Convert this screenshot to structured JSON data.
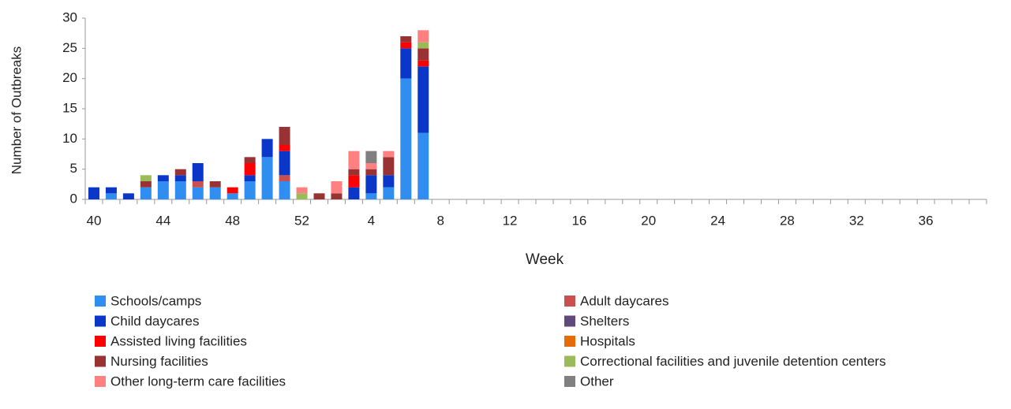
{
  "chart_data": {
    "type": "stacked-bar",
    "x_label": "Week",
    "y_label": "Number of Outbreaks",
    "categories": [
      "40",
      null,
      null,
      null,
      "44",
      null,
      null,
      null,
      "48",
      null,
      null,
      null,
      "52",
      null,
      null,
      null,
      "4",
      null,
      null,
      null,
      "8",
      null,
      null,
      null,
      "12",
      null,
      null,
      null,
      "16",
      null,
      null,
      null,
      "20",
      null,
      null,
      null,
      "24",
      null,
      null,
      null,
      "28",
      null,
      null,
      null,
      "32",
      null,
      null,
      null,
      "36",
      null,
      null,
      null
    ],
    "ylim": [
      0,
      30
    ],
    "yticks": [
      0,
      5,
      10,
      15,
      20,
      25,
      30
    ],
    "grid": false,
    "series": [
      {
        "name": "Schools/camps",
        "color": "#2f8ef0",
        "values": [
          0,
          1,
          0,
          2,
          3,
          3,
          2,
          2,
          1,
          3,
          7,
          3,
          0,
          0,
          0,
          0,
          1,
          2,
          20,
          11,
          0,
          0,
          0,
          0,
          0,
          0,
          0,
          0,
          0,
          0,
          0,
          0,
          0,
          0,
          0,
          0,
          0,
          0,
          0,
          0,
          0,
          0,
          0,
          0,
          0,
          0,
          0,
          0,
          0,
          0,
          0,
          0
        ]
      },
      {
        "name": "Adult daycares",
        "color": "#c9504f",
        "values": [
          0,
          0,
          0,
          0,
          0,
          0,
          1,
          0,
          0,
          0,
          0,
          1,
          0,
          0,
          0,
          0,
          0,
          0,
          0,
          0,
          0,
          0,
          0,
          0,
          0,
          0,
          0,
          0,
          0,
          0,
          0,
          0,
          0,
          0,
          0,
          0,
          0,
          0,
          0,
          0,
          0,
          0,
          0,
          0,
          0,
          0,
          0,
          0,
          0,
          0,
          0,
          0
        ]
      },
      {
        "name": "Child daycares",
        "color": "#0a37c8",
        "values": [
          2,
          1,
          1,
          0,
          1,
          1,
          3,
          0,
          0,
          1,
          3,
          4,
          0,
          0,
          0,
          2,
          3,
          2,
          5,
          11,
          0,
          0,
          0,
          0,
          0,
          0,
          0,
          0,
          0,
          0,
          0,
          0,
          0,
          0,
          0,
          0,
          0,
          0,
          0,
          0,
          0,
          0,
          0,
          0,
          0,
          0,
          0,
          0,
          0,
          0,
          0,
          0
        ]
      },
      {
        "name": "Assisted living facilities",
        "color": "#ff0000",
        "values": [
          0,
          0,
          0,
          0,
          0,
          0,
          0,
          0,
          1,
          2,
          0,
          1,
          0,
          0,
          0,
          2,
          0,
          0,
          1,
          1,
          0,
          0,
          0,
          0,
          0,
          0,
          0,
          0,
          0,
          0,
          0,
          0,
          0,
          0,
          0,
          0,
          0,
          0,
          0,
          0,
          0,
          0,
          0,
          0,
          0,
          0,
          0,
          0,
          0,
          0,
          0,
          0
        ]
      },
      {
        "name": "Nursing facilities",
        "color": "#993333",
        "values": [
          0,
          0,
          0,
          1,
          0,
          1,
          0,
          1,
          0,
          1,
          0,
          3,
          0,
          1,
          1,
          1,
          1,
          3,
          1,
          2,
          0,
          0,
          0,
          0,
          0,
          0,
          0,
          0,
          0,
          0,
          0,
          0,
          0,
          0,
          0,
          0,
          0,
          0,
          0,
          0,
          0,
          0,
          0,
          0,
          0,
          0,
          0,
          0,
          0,
          0,
          0,
          0
        ]
      },
      {
        "name": "Shelters",
        "color": "#604a7b",
        "values": [
          0,
          0,
          0,
          0,
          0,
          0,
          0,
          0,
          0,
          0,
          0,
          0,
          0,
          0,
          0,
          0,
          0,
          0,
          0,
          0,
          0,
          0,
          0,
          0,
          0,
          0,
          0,
          0,
          0,
          0,
          0,
          0,
          0,
          0,
          0,
          0,
          0,
          0,
          0,
          0,
          0,
          0,
          0,
          0,
          0,
          0,
          0,
          0,
          0,
          0,
          0,
          0
        ]
      },
      {
        "name": "Hospitals",
        "color": "#e46c0a",
        "values": [
          0,
          0,
          0,
          0,
          0,
          0,
          0,
          0,
          0,
          0,
          0,
          0,
          0,
          0,
          0,
          0,
          0,
          0,
          0,
          0,
          0,
          0,
          0,
          0,
          0,
          0,
          0,
          0,
          0,
          0,
          0,
          0,
          0,
          0,
          0,
          0,
          0,
          0,
          0,
          0,
          0,
          0,
          0,
          0,
          0,
          0,
          0,
          0,
          0,
          0,
          0,
          0
        ]
      },
      {
        "name": "Correctional facilities and juvenile detention centers",
        "color": "#9bbb59",
        "values": [
          0,
          0,
          0,
          1,
          0,
          0,
          0,
          0,
          0,
          0,
          0,
          0,
          1,
          0,
          0,
          0,
          0,
          0,
          0,
          1,
          0,
          0,
          0,
          0,
          0,
          0,
          0,
          0,
          0,
          0,
          0,
          0,
          0,
          0,
          0,
          0,
          0,
          0,
          0,
          0,
          0,
          0,
          0,
          0,
          0,
          0,
          0,
          0,
          0,
          0,
          0,
          0
        ]
      },
      {
        "name": "Other long-term care facilities",
        "color": "#ff8080",
        "values": [
          0,
          0,
          0,
          0,
          0,
          0,
          0,
          0,
          0,
          0,
          0,
          0,
          1,
          0,
          2,
          3,
          1,
          1,
          0,
          2,
          0,
          0,
          0,
          0,
          0,
          0,
          0,
          0,
          0,
          0,
          0,
          0,
          0,
          0,
          0,
          0,
          0,
          0,
          0,
          0,
          0,
          0,
          0,
          0,
          0,
          0,
          0,
          0,
          0,
          0,
          0,
          0
        ]
      },
      {
        "name": "Other",
        "color": "#808080",
        "values": [
          0,
          0,
          0,
          0,
          0,
          0,
          0,
          0,
          0,
          0,
          0,
          0,
          0,
          0,
          0,
          0,
          2,
          0,
          0,
          0,
          0,
          0,
          0,
          0,
          0,
          0,
          0,
          0,
          0,
          0,
          0,
          0,
          0,
          0,
          0,
          0,
          0,
          0,
          0,
          0,
          0,
          0,
          0,
          0,
          0,
          0,
          0,
          0,
          0,
          0,
          0,
          0
        ]
      }
    ]
  }
}
